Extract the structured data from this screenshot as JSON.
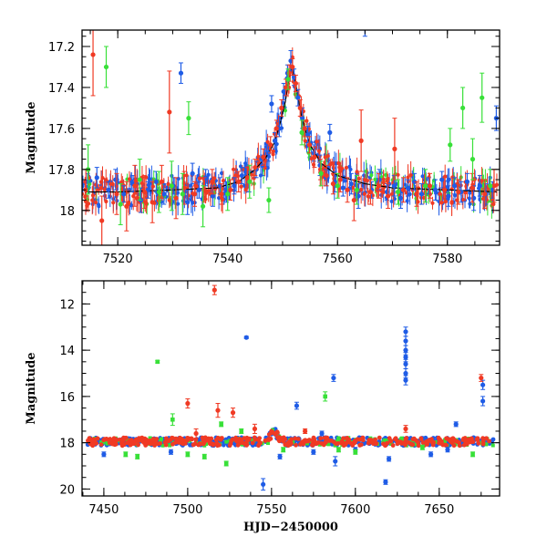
{
  "colors": {
    "blue": "#1f5ce6",
    "red": "#f03a24",
    "green": "#38e038",
    "model": "#000000"
  },
  "chart_data": [
    {
      "type": "scatter",
      "title": "",
      "xlabel": "",
      "ylabel": "Magnitude",
      "xlim": [
        7513.5,
        7589.5
      ],
      "ylim": [
        18.17,
        17.12
      ],
      "y_inverted": true,
      "xticks": [
        "7520",
        "7540",
        "7560",
        "7580"
      ],
      "yticks": [
        "17.2",
        "17.4",
        "17.6",
        "17.8",
        "18"
      ],
      "xtick_values": [
        7520,
        7540,
        7560,
        7580
      ],
      "ytick_values": [
        17.2,
        17.4,
        17.6,
        17.8,
        18.0
      ],
      "model_curve": {
        "baseline": 17.91,
        "peak_mag": 17.3,
        "x": [
          7514,
          7520,
          7530,
          7538,
          7542,
          7545,
          7547,
          7548.5,
          7549.5,
          7550.5,
          7551.2,
          7551.7,
          7552.5,
          7553.5,
          7555,
          7557,
          7560,
          7565,
          7570,
          7580,
          7589
        ],
        "y": [
          17.91,
          17.91,
          17.9,
          17.89,
          17.86,
          17.8,
          17.74,
          17.67,
          17.58,
          17.47,
          17.35,
          17.3,
          17.4,
          17.55,
          17.68,
          17.77,
          17.83,
          17.87,
          17.89,
          17.9,
          17.91
        ]
      },
      "series": [
        {
          "color": "blue",
          "points": [
            [
              7514.5,
              17.86,
              0.04
            ],
            [
              7516.2,
              17.84,
              0.05
            ],
            [
              7518.3,
              17.9,
              0.04
            ],
            [
              7519.6,
              17.85,
              0.05
            ],
            [
              7521.1,
              17.92,
              0.04
            ],
            [
              7522.8,
              17.87,
              0.04
            ],
            [
              7524.2,
              17.95,
              0.06
            ],
            [
              7525.5,
              17.9,
              0.04
            ],
            [
              7527.0,
              17.86,
              0.05
            ],
            [
              7528.4,
              17.92,
              0.05
            ],
            [
              7530.1,
              17.88,
              0.04
            ],
            [
              7531.5,
              17.33,
              0.05
            ],
            [
              7532.7,
              17.96,
              0.06
            ],
            [
              7533.6,
              17.82,
              0.05
            ],
            [
              7534.8,
              17.9,
              0.04
            ],
            [
              7536.0,
              17.84,
              0.04
            ],
            [
              7537.3,
              17.93,
              0.05
            ],
            [
              7538.6,
              17.88,
              0.04
            ],
            [
              7539.8,
              17.91,
              0.05
            ],
            [
              7541.2,
              17.88,
              0.04
            ],
            [
              7542.6,
              17.83,
              0.04
            ],
            [
              7543.9,
              17.86,
              0.05
            ],
            [
              7545.2,
              17.8,
              0.04
            ],
            [
              7546.3,
              17.78,
              0.05
            ],
            [
              7547.4,
              17.72,
              0.04
            ],
            [
              7548.0,
              17.48,
              0.04
            ],
            [
              7548.6,
              17.66,
              0.04
            ],
            [
              7549.4,
              17.6,
              0.04
            ],
            [
              7550.2,
              17.42,
              0.04
            ],
            [
              7550.9,
              17.33,
              0.04
            ],
            [
              7551.5,
              17.27,
              0.05
            ],
            [
              7552.1,
              17.35,
              0.04
            ],
            [
              7552.8,
              17.45,
              0.04
            ],
            [
              7553.6,
              17.55,
              0.05
            ],
            [
              7554.6,
              17.63,
              0.04
            ],
            [
              7555.7,
              17.72,
              0.04
            ],
            [
              7556.8,
              17.78,
              0.05
            ],
            [
              7557.9,
              17.84,
              0.04
            ],
            [
              7558.6,
              17.62,
              0.04
            ],
            [
              7559.5,
              17.86,
              0.05
            ],
            [
              7561.0,
              17.89,
              0.04
            ],
            [
              7562.5,
              17.87,
              0.05
            ],
            [
              7563.8,
              17.93,
              0.06
            ],
            [
              7565.0,
              17.1,
              0.05
            ],
            [
              7566.2,
              17.9,
              0.04
            ],
            [
              7567.6,
              17.85,
              0.05
            ],
            [
              7569.0,
              17.91,
              0.04
            ],
            [
              7570.3,
              17.88,
              0.05
            ],
            [
              7571.5,
              17.94,
              0.05
            ],
            [
              7572.8,
              17.89,
              0.04
            ],
            [
              7574.0,
              17.86,
              0.04
            ],
            [
              7575.3,
              17.92,
              0.05
            ],
            [
              7576.6,
              17.88,
              0.04
            ],
            [
              7577.8,
              17.9,
              0.05
            ],
            [
              7579.0,
              17.85,
              0.04
            ],
            [
              7580.2,
              17.93,
              0.05
            ],
            [
              7581.3,
              17.88,
              0.04
            ],
            [
              7582.5,
              17.91,
              0.05
            ],
            [
              7583.6,
              17.86,
              0.04
            ],
            [
              7584.8,
              17.94,
              0.06
            ],
            [
              7585.9,
              17.88,
              0.05
            ],
            [
              7587.0,
              17.92,
              0.05
            ],
            [
              7588.2,
              17.9,
              0.04
            ],
            [
              7588.9,
              17.55,
              0.06
            ]
          ]
        },
        {
          "color": "red",
          "points": [
            [
              7514.2,
              17.9,
              0.1
            ],
            [
              7515.5,
              17.24,
              0.2
            ],
            [
              7517.1,
              18.05,
              0.12
            ],
            [
              7519.8,
              17.92,
              0.1
            ],
            [
              7521.6,
              17.98,
              0.12
            ],
            [
              7523.1,
              17.88,
              0.1
            ],
            [
              7524.9,
              17.91,
              0.08
            ],
            [
              7526.3,
              17.96,
              0.1
            ],
            [
              7528.0,
              17.86,
              0.08
            ],
            [
              7529.4,
              17.52,
              0.2
            ],
            [
              7530.6,
              17.94,
              0.1
            ],
            [
              7532.1,
              17.89,
              0.08
            ],
            [
              7534.0,
              17.92,
              0.06
            ],
            [
              7535.7,
              17.9,
              0.06
            ],
            [
              7537.2,
              17.86,
              0.06
            ],
            [
              7538.9,
              17.92,
              0.05
            ],
            [
              7540.5,
              17.9,
              0.05
            ],
            [
              7542.0,
              17.86,
              0.05
            ],
            [
              7543.6,
              17.84,
              0.05
            ],
            [
              7545.0,
              17.79,
              0.04
            ],
            [
              7546.5,
              17.74,
              0.04
            ],
            [
              7547.8,
              17.68,
              0.04
            ],
            [
              7548.9,
              17.6,
              0.04
            ],
            [
              7549.8,
              17.5,
              0.04
            ],
            [
              7550.6,
              17.4,
              0.04
            ],
            [
              7551.2,
              17.33,
              0.04
            ],
            [
              7551.8,
              17.3,
              0.04
            ],
            [
              7552.4,
              17.38,
              0.04
            ],
            [
              7553.2,
              17.5,
              0.04
            ],
            [
              7554.0,
              17.6,
              0.04
            ],
            [
              7554.9,
              17.68,
              0.04
            ],
            [
              7555.8,
              17.74,
              0.05
            ],
            [
              7556.9,
              17.8,
              0.05
            ],
            [
              7558.0,
              17.83,
              0.05
            ],
            [
              7559.2,
              17.87,
              0.05
            ],
            [
              7560.5,
              17.85,
              0.06
            ],
            [
              7561.8,
              17.9,
              0.06
            ],
            [
              7563.0,
              17.95,
              0.1
            ],
            [
              7564.3,
              17.66,
              0.15
            ],
            [
              7566.0,
              17.91,
              0.06
            ],
            [
              7567.5,
              17.88,
              0.06
            ],
            [
              7569.2,
              17.93,
              0.06
            ],
            [
              7570.4,
              17.7,
              0.15
            ],
            [
              7572.0,
              17.9,
              0.06
            ],
            [
              7574.4,
              17.92,
              0.06
            ],
            [
              7576.8,
              17.88,
              0.06
            ],
            [
              7579.5,
              17.9,
              0.06
            ],
            [
              7582.0,
              17.91,
              0.06
            ],
            [
              7584.5,
              17.89,
              0.07
            ],
            [
              7586.8,
              17.92,
              0.07
            ],
            [
              7588.5,
              17.88,
              0.08
            ]
          ]
        },
        {
          "color": "green",
          "points": [
            [
              7514.6,
              17.8,
              0.12
            ],
            [
              7517.9,
              17.3,
              0.1
            ],
            [
              7520.5,
              17.97,
              0.1
            ],
            [
              7524.0,
              17.85,
              0.1
            ],
            [
              7527.5,
              17.91,
              0.1
            ],
            [
              7529.8,
              17.88,
              0.12
            ],
            [
              7531.8,
              17.92,
              0.1
            ],
            [
              7532.9,
              17.55,
              0.08
            ],
            [
              7535.5,
              17.98,
              0.1
            ],
            [
              7540.0,
              17.92,
              0.08
            ],
            [
              7544.0,
              17.86,
              0.08
            ],
            [
              7547.5,
              17.95,
              0.06
            ],
            [
              7551.0,
              17.36,
              0.05
            ],
            [
              7553.5,
              17.62,
              0.06
            ],
            [
              7557.0,
              17.82,
              0.06
            ],
            [
              7560.0,
              17.88,
              0.06
            ],
            [
              7563.5,
              17.9,
              0.07
            ],
            [
              7571.0,
              17.91,
              0.06
            ],
            [
              7576.0,
              17.88,
              0.08
            ],
            [
              7580.5,
              17.68,
              0.08
            ],
            [
              7582.8,
              17.5,
              0.1
            ],
            [
              7584.6,
              17.75,
              0.1
            ],
            [
              7586.3,
              17.45,
              0.12
            ],
            [
              7587.8,
              17.88,
              0.08
            ]
          ]
        }
      ]
    },
    {
      "type": "scatter",
      "title": "",
      "xlabel": "HJD−2450000",
      "ylabel": "Magnitude",
      "xlim": [
        7437,
        7686
      ],
      "ylim": [
        20.3,
        11.0
      ],
      "y_inverted": true,
      "xticks": [
        "7450",
        "7500",
        "7550",
        "7600",
        "7650"
      ],
      "yticks": [
        "12",
        "14",
        "16",
        "18",
        "20"
      ],
      "xtick_values": [
        7450,
        7500,
        7550,
        7600,
        7650
      ],
      "ytick_values": [
        12,
        14,
        16,
        18,
        20
      ],
      "baseline": 17.95,
      "series": [
        {
          "color": "blue",
          "points": [
            [
              7535,
              13.45,
              0.05
            ],
            [
              7545,
              19.8,
              0.25
            ],
            [
              7565,
              16.4,
              0.15
            ],
            [
              7575,
              18.4,
              0.1
            ],
            [
              7580,
              17.6,
              0.1
            ],
            [
              7587,
              15.2,
              0.15
            ],
            [
              7588,
              18.8,
              0.2
            ],
            [
              7618,
              19.7,
              0.1
            ],
            [
              7630,
              13.2,
              0.2
            ],
            [
              7630,
              13.6,
              0.2
            ],
            [
              7630,
              14.0,
              0.2
            ],
            [
              7630,
              14.3,
              0.2
            ],
            [
              7630,
              14.6,
              0.2
            ],
            [
              7630,
              15.0,
              0.2
            ],
            [
              7630,
              15.3,
              0.2
            ],
            [
              7645,
              18.5,
              0.1
            ],
            [
              7660,
              17.2,
              0.1
            ],
            [
              7676,
              16.2,
              0.2
            ],
            [
              7676,
              15.5,
              0.2
            ],
            [
              7450,
              18.5,
              0.1
            ],
            [
              7490,
              18.4,
              0.1
            ],
            [
              7555,
              18.6,
              0.1
            ],
            [
              7600,
              18.3,
              0.1
            ],
            [
              7620,
              18.7,
              0.1
            ],
            [
              7655,
              18.3,
              0.1
            ]
          ]
        },
        {
          "color": "red",
          "points": [
            [
              7516,
              11.4,
              0.2
            ],
            [
              7500,
              16.3,
              0.2
            ],
            [
              7518,
              16.6,
              0.3
            ],
            [
              7527,
              16.7,
              0.2
            ],
            [
              7630,
              17.4,
              0.15
            ],
            [
              7675,
              15.2,
              0.15
            ],
            [
              7505,
              17.6,
              0.2
            ],
            [
              7540,
              17.4,
              0.2
            ],
            [
              7570,
              17.5,
              0.1
            ]
          ]
        },
        {
          "color": "green",
          "points": [
            [
              7482,
              14.5,
              0.05
            ],
            [
              7491,
              17.0,
              0.25
            ],
            [
              7520,
              17.2,
              0.1
            ],
            [
              7523,
              18.9,
              0.1
            ],
            [
              7532,
              17.5,
              0.1
            ],
            [
              7582,
              16.0,
              0.2
            ],
            [
              7590,
              18.3,
              0.1
            ],
            [
              7463,
              18.5,
              0.1
            ],
            [
              7470,
              18.6,
              0.1
            ],
            [
              7500,
              18.5,
              0.1
            ],
            [
              7510,
              18.6,
              0.1
            ],
            [
              7557,
              18.3,
              0.1
            ],
            [
              7600,
              18.4,
              0.1
            ],
            [
              7640,
              18.2,
              0.1
            ],
            [
              7670,
              18.5,
              0.1
            ]
          ]
        }
      ]
    }
  ]
}
